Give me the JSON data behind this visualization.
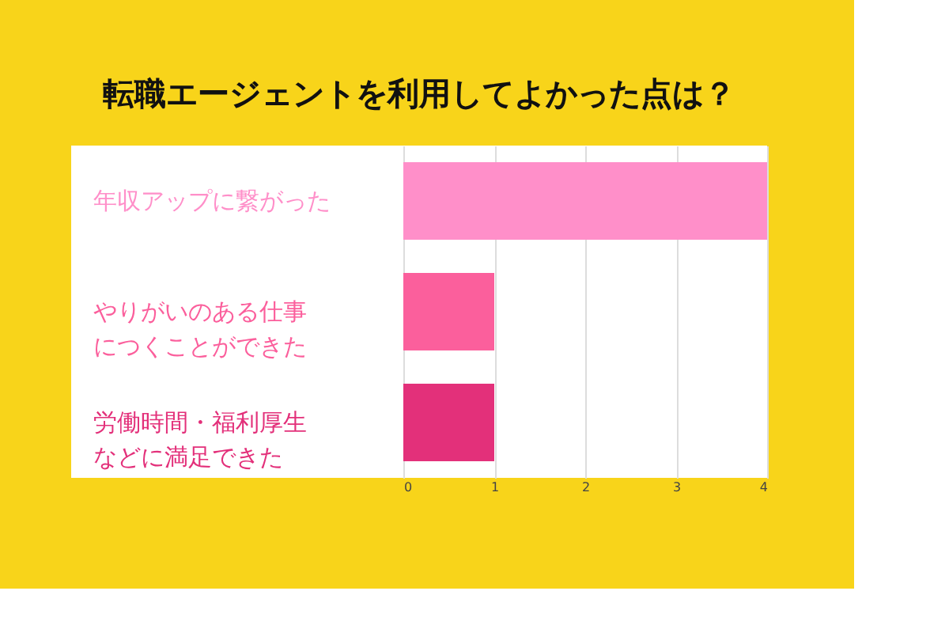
{
  "chart_data": {
    "type": "bar",
    "orientation": "horizontal",
    "title": "転職エージェントを利用してよかった点は？",
    "categories": [
      "年収アップに繋がった",
      "やりがいのある仕事につくことができた",
      "労働時間・福利厚生などに満足できた"
    ],
    "values": [
      4,
      1,
      1
    ],
    "colors": [
      "#ff8fc9",
      "#fb5f9c",
      "#e3307a"
    ],
    "xlim": [
      0,
      4
    ],
    "xticks": [
      0,
      1,
      2,
      3,
      4
    ],
    "grid": "x"
  }
}
